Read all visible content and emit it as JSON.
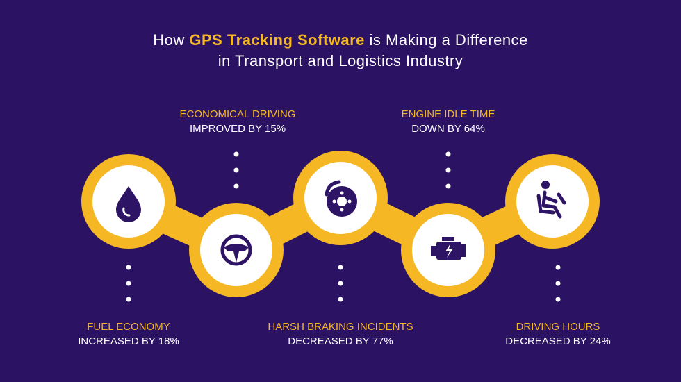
{
  "header": {
    "title_line1": {
      "lead": "How",
      "highlight": "GPS Tracking Software",
      "rest": "is Making a Difference"
    },
    "title_line2": "in Transport and Logistics Industry"
  },
  "items": [
    {
      "label": "FUEL ECONOMY",
      "detail": "INCREASED BY 18%"
    },
    {
      "label": "ECONOMICAL DRIVING",
      "detail": "IMPROVED BY 15%"
    },
    {
      "label": "HARSH BRAKING INCIDENTS",
      "detail": "DECREASED BY 77%"
    },
    {
      "label": "ENGINE IDLE TIME",
      "detail": "DOWN BY 64%"
    },
    {
      "label": "DRIVING HOURS",
      "detail": "DECREASED BY 24%"
    }
  ]
}
